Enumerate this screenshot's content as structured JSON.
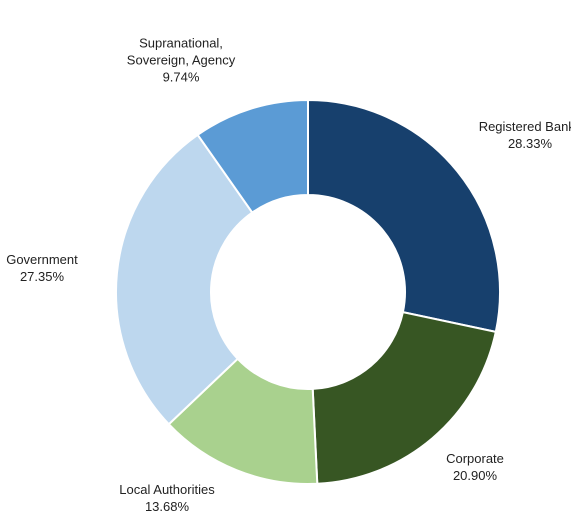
{
  "chart_data": {
    "type": "donut",
    "categories": [
      "Registered Banks",
      "Corporate",
      "Local Authorities",
      "Government",
      "Supranational, Sovereign, Agency"
    ],
    "values": [
      28.33,
      20.9,
      13.68,
      27.35,
      9.74
    ],
    "value_labels": [
      "28.33%",
      "20.90%",
      "13.68%",
      "27.35%",
      "9.74%"
    ],
    "colors": [
      "#17406d",
      "#375623",
      "#a9d18e",
      "#bdd7ee",
      "#5b9bd5"
    ]
  }
}
